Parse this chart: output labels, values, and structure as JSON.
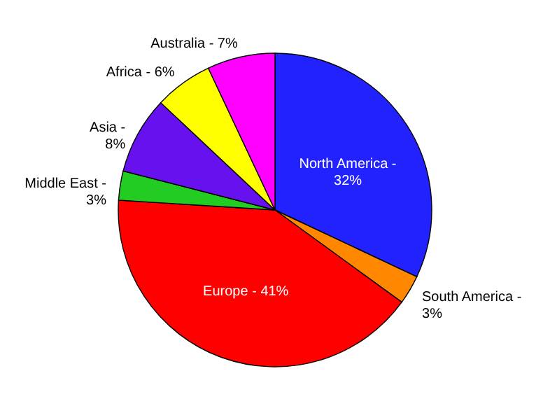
{
  "chart_data": {
    "type": "pie",
    "categories": [
      "North America - 32%",
      "South America - 3%",
      "Europe - 41%",
      "Middle East - 3%",
      "Asia - 8%",
      "Africa - 6%",
      "Australia - 7%"
    ],
    "values": [
      32,
      3,
      41,
      3,
      8,
      6,
      7
    ],
    "colors": [
      "#2222ff",
      "#ff8800",
      "#ff0000",
      "#22cc22",
      "#6611ee",
      "#ffff00",
      "#ff00ff"
    ]
  }
}
